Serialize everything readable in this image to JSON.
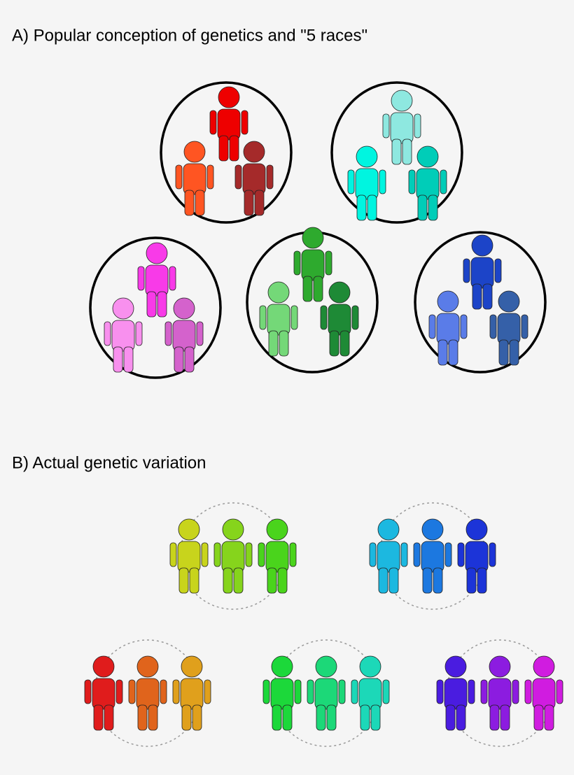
{
  "header": {
    "title": "A) Popular conception of genetics and \"5 races\""
  },
  "section_b": {
    "title": "B) Actual genetic variation"
  }
}
